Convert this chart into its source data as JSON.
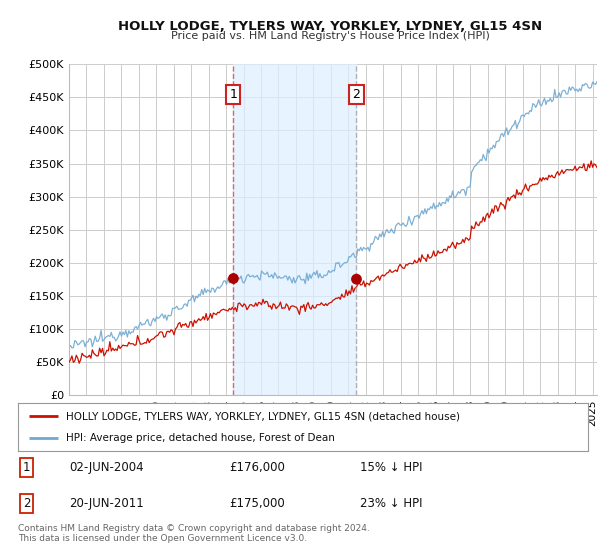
{
  "title": "HOLLY LODGE, TYLERS WAY, YORKLEY, LYDNEY, GL15 4SN",
  "subtitle": "Price paid vs. HM Land Registry's House Price Index (HPI)",
  "ylabel_ticks": [
    "£0",
    "£50K",
    "£100K",
    "£150K",
    "£200K",
    "£250K",
    "£300K",
    "£350K",
    "£400K",
    "£450K",
    "£500K"
  ],
  "ytick_values": [
    0,
    50000,
    100000,
    150000,
    200000,
    250000,
    300000,
    350000,
    400000,
    450000,
    500000
  ],
  "ylim": [
    0,
    500000
  ],
  "xlim_start": 1995.0,
  "xlim_end": 2025.25,
  "purchase1_x": 2004.42,
  "purchase1_y": 176000,
  "purchase1_label": "1",
  "purchase2_x": 2011.47,
  "purchase2_y": 175000,
  "purchase2_label": "2",
  "hpi_color": "#6fa8d0",
  "property_color": "#cc1100",
  "dot_color": "#aa0000",
  "plot_bg": "#ffffff",
  "fig_bg": "#ffffff",
  "grid_color": "#cccccc",
  "shade_color": "#ddeeff",
  "legend_label_property": "HOLLY LODGE, TYLERS WAY, YORKLEY, LYDNEY, GL15 4SN (detached house)",
  "legend_label_hpi": "HPI: Average price, detached house, Forest of Dean",
  "table_row1": [
    "1",
    "02-JUN-2004",
    "£176,000",
    "15% ↓ HPI"
  ],
  "table_row2": [
    "2",
    "20-JUN-2011",
    "£175,000",
    "23% ↓ HPI"
  ],
  "footer": "Contains HM Land Registry data © Crown copyright and database right 2024.\nThis data is licensed under the Open Government Licence v3.0.",
  "vline1_color": "#dd4444",
  "vline1_style": "--",
  "vline2_color": "#aaaaaa",
  "vline2_style": "--",
  "label_box_color": "#cc2222"
}
